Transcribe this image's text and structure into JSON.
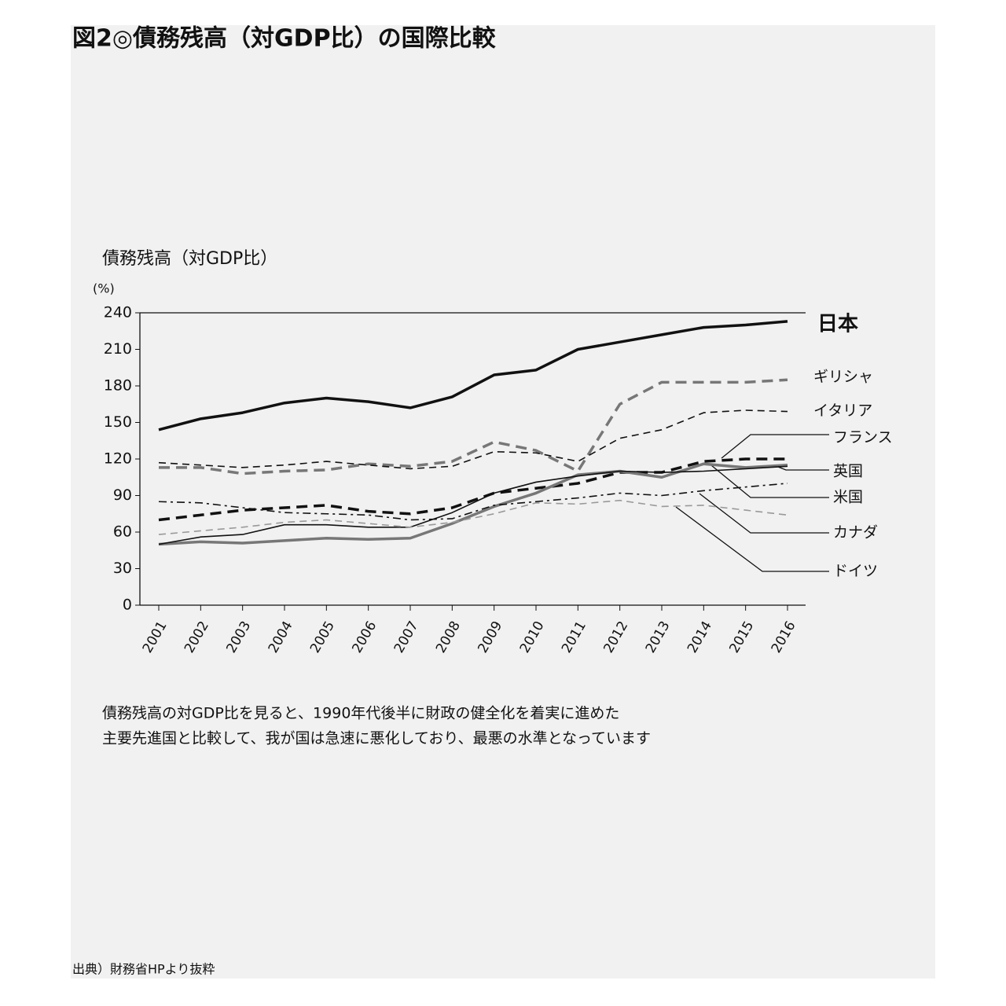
{
  "chart_data": {
    "type": "line",
    "title": "図2◎債務残高（対GDP比）の国際比較",
    "y_label": "債務残高（対GDP比）",
    "y_unit": "(%)",
    "categories": [
      "2001",
      "2002",
      "2003",
      "2004",
      "2005",
      "2006",
      "2007",
      "2008",
      "2009",
      "2010",
      "2011",
      "2012",
      "2013",
      "2014",
      "2015",
      "2016"
    ],
    "ylim": [
      0,
      240
    ],
    "yticks": [
      0,
      30,
      60,
      90,
      120,
      150,
      180,
      210,
      240
    ],
    "grid": false,
    "series": [
      {
        "name": "日本",
        "color": "#111111",
        "style": "solid",
        "weight": "thick",
        "values": [
          144,
          153,
          158,
          166,
          170,
          167,
          162,
          171,
          189,
          193,
          210,
          216,
          222,
          228,
          230,
          233
        ]
      },
      {
        "name": "ギリシャ",
        "color": "#777777",
        "style": "dashed",
        "weight": "thick",
        "values": [
          113,
          113,
          108,
          110,
          111,
          116,
          114,
          118,
          134,
          127,
          110,
          165,
          183,
          183,
          183,
          185
        ]
      },
      {
        "name": "イタリア",
        "color": "#111111",
        "style": "dashed",
        "weight": "thin",
        "values": [
          117,
          115,
          113,
          115,
          118,
          115,
          112,
          114,
          126,
          125,
          118,
          137,
          144,
          158,
          160,
          159
        ]
      },
      {
        "name": "フランス",
        "color": "#111111",
        "style": "dashed",
        "weight": "thick",
        "values": [
          70,
          74,
          78,
          80,
          82,
          77,
          75,
          80,
          92,
          96,
          100,
          109,
          109,
          118,
          120,
          120
        ]
      },
      {
        "name": "英国",
        "color": "#777777",
        "style": "solid",
        "weight": "thick",
        "values": [
          50,
          52,
          51,
          53,
          55,
          54,
          55,
          67,
          81,
          92,
          107,
          110,
          105,
          116,
          113,
          115
        ]
      },
      {
        "name": "米国",
        "color": "#111111",
        "style": "solid",
        "weight": "thin",
        "values": [
          50,
          56,
          58,
          66,
          66,
          64,
          64,
          76,
          92,
          101,
          106,
          110,
          109,
          110,
          112,
          114
        ]
      },
      {
        "name": "カナダ",
        "color": "#111111",
        "style": "dashdot",
        "weight": "thin",
        "values": [
          85,
          84,
          80,
          76,
          75,
          74,
          70,
          71,
          82,
          85,
          88,
          92,
          90,
          94,
          97,
          100
        ]
      },
      {
        "name": "ドイツ",
        "color": "#999999",
        "style": "dashed",
        "weight": "thin",
        "values": [
          58,
          61,
          64,
          68,
          70,
          67,
          64,
          68,
          75,
          84,
          83,
          86,
          81,
          82,
          78,
          74
        ]
      }
    ],
    "caption": [
      "債務残高の対GDP比を見ると、1990年代後半に財政の健全化を着実に進めた",
      "主要先進国と比較して、我が国は急速に悪化しており、最悪の水準となっています"
    ],
    "source": "出典）財務省HPより抜粋"
  }
}
